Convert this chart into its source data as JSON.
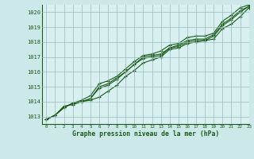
{
  "title": "Graphe pression niveau de la mer (hPa)",
  "bg_color": "#cce8e8",
  "plot_bg_color": "#d8f0f0",
  "line_color": "#1a5c1a",
  "grid_color": "#99bbbb",
  "xlim": [
    -0.5,
    23
  ],
  "ylim": [
    1012.5,
    1020.5
  ],
  "yticks": [
    1013,
    1014,
    1015,
    1016,
    1017,
    1018,
    1019,
    1020
  ],
  "xticks": [
    0,
    1,
    2,
    3,
    4,
    5,
    6,
    7,
    8,
    9,
    10,
    11,
    12,
    13,
    14,
    15,
    16,
    17,
    18,
    19,
    20,
    21,
    22,
    23
  ],
  "series1": [
    1012.8,
    1013.1,
    1013.7,
    1013.8,
    1014.0,
    1014.1,
    1014.3,
    1014.7,
    1015.1,
    1015.7,
    1016.1,
    1016.6,
    1016.8,
    1017.0,
    1017.5,
    1017.6,
    1017.9,
    1018.0,
    1018.1,
    1018.2,
    1018.9,
    1019.2,
    1019.7,
    1020.3
  ],
  "series2": [
    1012.8,
    1013.1,
    1013.6,
    1013.9,
    1014.0,
    1014.2,
    1014.9,
    1015.1,
    1015.5,
    1016.0,
    1016.5,
    1016.9,
    1017.0,
    1017.1,
    1017.6,
    1017.7,
    1018.0,
    1018.1,
    1018.1,
    1018.4,
    1019.1,
    1019.5,
    1020.0,
    1020.4
  ],
  "series3": [
    1012.8,
    1013.1,
    1013.6,
    1013.9,
    1014.0,
    1014.2,
    1015.0,
    1015.2,
    1015.6,
    1016.0,
    1016.5,
    1017.0,
    1017.1,
    1017.2,
    1017.6,
    1017.8,
    1018.1,
    1018.2,
    1018.2,
    1018.5,
    1019.2,
    1019.6,
    1020.1,
    1020.4
  ],
  "series4": [
    1012.8,
    1013.1,
    1013.6,
    1013.9,
    1014.1,
    1014.4,
    1015.2,
    1015.4,
    1015.7,
    1016.2,
    1016.7,
    1017.1,
    1017.2,
    1017.4,
    1017.8,
    1017.9,
    1018.3,
    1018.4,
    1018.4,
    1018.6,
    1019.4,
    1019.8,
    1020.3,
    1020.5
  ],
  "markers1": [
    0,
    1,
    2,
    3,
    4,
    5,
    6,
    7,
    8,
    9,
    10,
    11,
    12,
    13,
    14,
    15,
    16,
    17,
    18,
    19,
    20,
    21,
    22,
    23
  ],
  "markers2": [
    0,
    1,
    2,
    3,
    4,
    5,
    6,
    7,
    8,
    9,
    10,
    11,
    12,
    13,
    14,
    15,
    16,
    17,
    18,
    19,
    20,
    21,
    22,
    23
  ],
  "markers3": [
    0,
    1,
    2,
    3,
    4,
    5,
    6,
    7,
    8,
    9,
    10,
    11,
    12,
    13,
    14,
    15,
    16,
    17,
    18,
    19,
    20,
    21,
    22,
    23
  ],
  "markers4": [
    0,
    1,
    2,
    3,
    4,
    5,
    6,
    7,
    8,
    9,
    10,
    11,
    12,
    13,
    14,
    15,
    16,
    17,
    18,
    19,
    20,
    21,
    22,
    23
  ]
}
